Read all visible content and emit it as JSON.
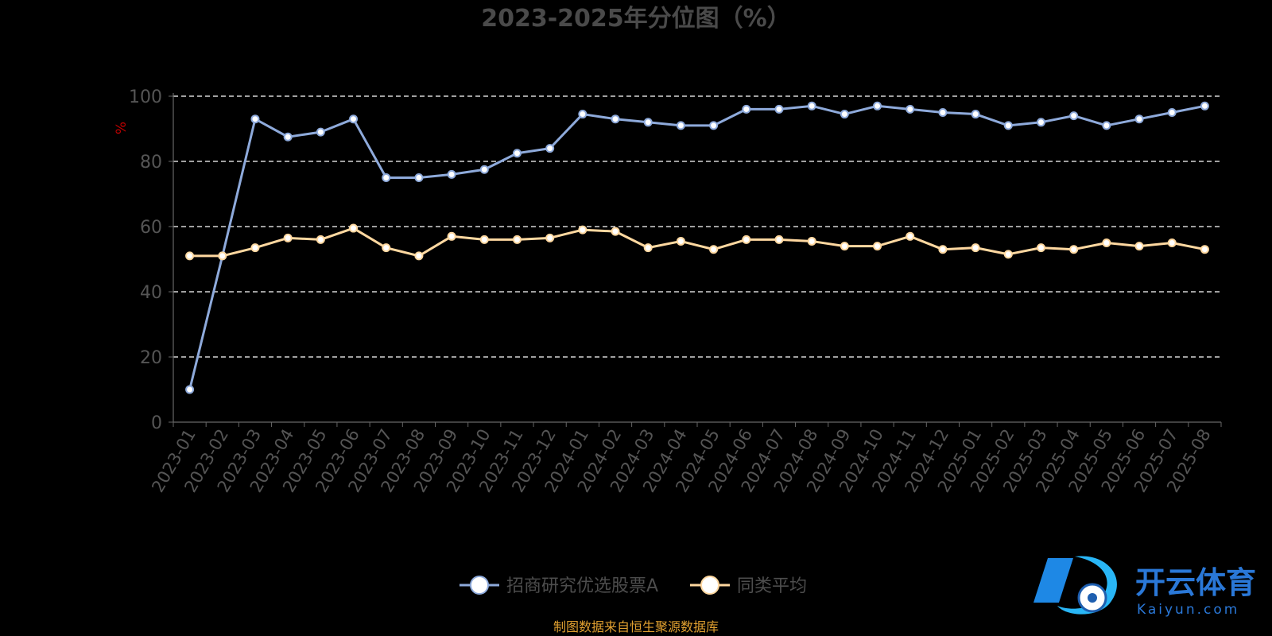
{
  "chart_data": {
    "type": "line",
    "title": "2023-2025年分位图（%）",
    "ylabel": "%",
    "ylim": [
      0,
      100
    ],
    "yticks": [
      0,
      20,
      40,
      60,
      80,
      100
    ],
    "grid": true,
    "legend_position": "bottom",
    "categories": [
      "2023-01",
      "2023-02",
      "2023-03",
      "2023-04",
      "2023-05",
      "2023-06",
      "2023-07",
      "2023-08",
      "2023-09",
      "2023-10",
      "2023-11",
      "2023-12",
      "2024-01",
      "2024-02",
      "2024-03",
      "2024-04",
      "2024-05",
      "2024-06",
      "2024-07",
      "2024-08",
      "2024-09",
      "2024-10",
      "2024-11",
      "2024-12",
      "2025-01",
      "2025-02",
      "2025-03",
      "2025-04",
      "2025-05",
      "2025-06",
      "2025-07",
      "2025-08"
    ],
    "series": [
      {
        "name": "招商研究优选股票A",
        "color": "#8eaadb",
        "values": [
          10,
          51,
          93,
          87.5,
          89,
          93,
          75,
          75,
          76,
          77.5,
          82.5,
          84,
          94.5,
          93,
          92,
          91,
          91,
          96,
          96,
          97,
          94.5,
          97,
          96,
          95,
          94.5,
          91,
          92,
          94,
          91,
          93,
          95,
          97
        ]
      },
      {
        "name": "同类平均",
        "color": "#ffd8a0",
        "values": [
          51,
          51,
          53.5,
          56.5,
          56,
          59.5,
          53.5,
          51,
          57,
          56,
          56,
          56.5,
          59,
          58.5,
          53.5,
          55.5,
          53,
          56,
          56,
          55.5,
          54,
          54,
          57,
          53,
          53.5,
          51.5,
          53.5,
          53,
          55,
          54,
          55,
          53
        ]
      }
    ]
  },
  "footer": {
    "source": "制图数据来自恒生聚源数据库"
  },
  "watermark": {
    "text_cn": "开云体育",
    "text_en": "Kaiyun.com"
  }
}
